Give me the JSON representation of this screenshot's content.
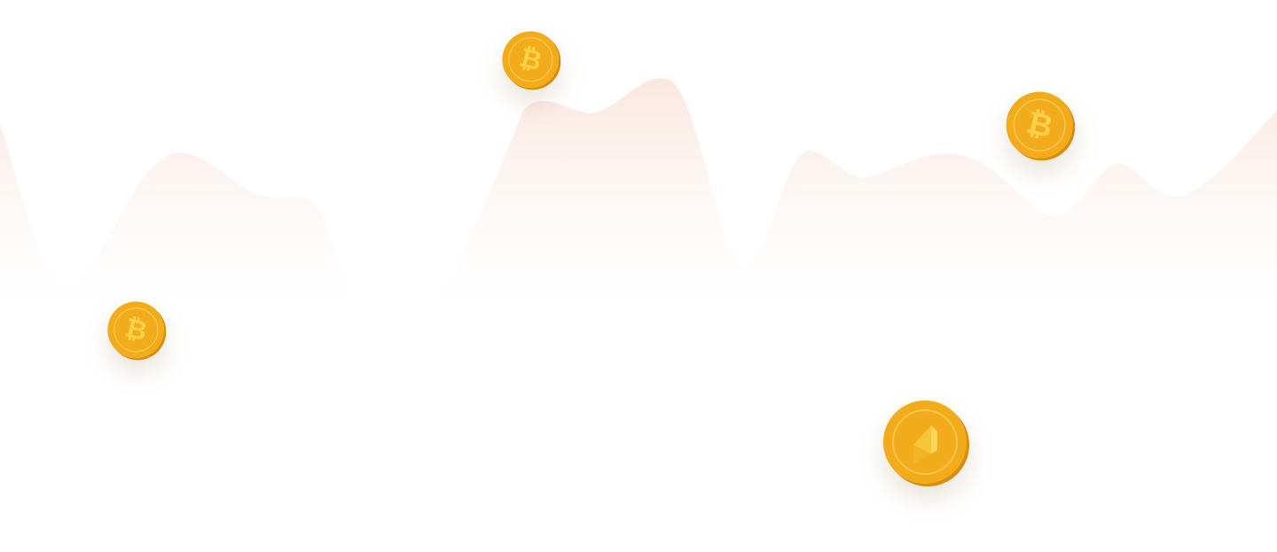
{
  "background": {
    "color": "#ffffff",
    "wave_color": "#f6c9b8"
  },
  "coins": [
    {
      "icon": "bitcoin-coin-icon",
      "symbol": "₿"
    },
    {
      "icon": "bitcoin-coin-icon",
      "symbol": "₿"
    },
    {
      "icon": "bitcoin-coin-icon",
      "symbol": "₿"
    },
    {
      "icon": "ethereum-coin-icon",
      "symbol": ""
    }
  ],
  "colors": {
    "coin_face": "#f2ac1b",
    "coin_edge": "#d98c0c",
    "coin_inner": "#f6b82a",
    "coin_symbol": "#f9d04a"
  }
}
